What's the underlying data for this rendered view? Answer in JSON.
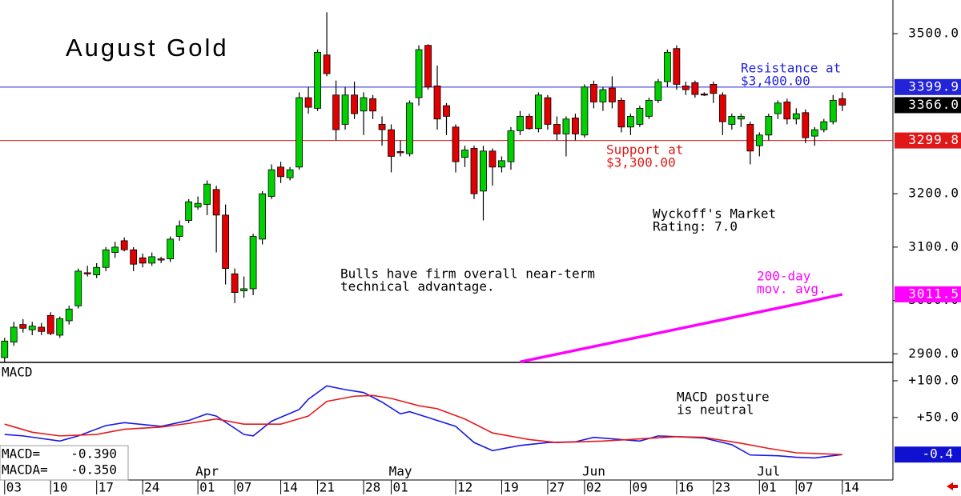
{
  "chart_data": {
    "type": "candlestick",
    "title": "August Gold",
    "xlim": [
      -0.5,
      96.5
    ],
    "xticks": [
      {
        "value": 0,
        "label": "03"
      },
      {
        "value": 5,
        "label": "10"
      },
      {
        "value": 10,
        "label": "17"
      },
      {
        "value": 15,
        "label": "24"
      },
      {
        "value": 21,
        "label": "01"
      },
      {
        "value": 25,
        "label": "07"
      },
      {
        "value": 30,
        "label": "14"
      },
      {
        "value": 34,
        "label": "21"
      },
      {
        "value": 39,
        "label": "28"
      },
      {
        "value": 42,
        "label": "01"
      },
      {
        "value": 49,
        "label": "12"
      },
      {
        "value": 54,
        "label": "19"
      },
      {
        "value": 59,
        "label": "27"
      },
      {
        "value": 63,
        "label": "02"
      },
      {
        "value": 68,
        "label": "09"
      },
      {
        "value": 73,
        "label": "16"
      },
      {
        "value": 77,
        "label": "23"
      },
      {
        "value": 82,
        "label": "01"
      },
      {
        "value": 86,
        "label": "07"
      },
      {
        "value": 91,
        "label": "14"
      }
    ],
    "month_labels": [
      {
        "value": 22,
        "label": "Apr"
      },
      {
        "value": 43,
        "label": "May"
      },
      {
        "value": 64,
        "label": "Jun"
      },
      {
        "value": 83,
        "label": "Jul"
      }
    ],
    "ylim": [
      2884,
      3563
    ],
    "yticks": [
      {
        "value": 2900,
        "label": "2900.0"
      },
      {
        "value": 3000,
        "label": "3000.0"
      },
      {
        "value": 3100,
        "label": "3100.0"
      },
      {
        "value": 3200,
        "label": "3200.0"
      },
      {
        "value": 3500,
        "label": "3500.0"
      }
    ],
    "up_color": "#00d000",
    "down_color": "#e00000",
    "ohlc": [
      [
        2893,
        2930,
        2885,
        2924
      ],
      [
        2922,
        2960,
        2915,
        2950
      ],
      [
        2955,
        2965,
        2940,
        2948
      ],
      [
        2945,
        2960,
        2935,
        2952
      ],
      [
        2950,
        2958,
        2935,
        2942
      ],
      [
        2972,
        2978,
        2935,
        2938
      ],
      [
        2935,
        2970,
        2930,
        2966
      ],
      [
        2962,
        2990,
        2955,
        2984
      ],
      [
        2990,
        3060,
        2985,
        3055
      ],
      [
        3052,
        3065,
        3045,
        3050
      ],
      [
        3048,
        3070,
        3042,
        3062
      ],
      [
        3062,
        3100,
        3055,
        3095
      ],
      [
        3090,
        3110,
        3080,
        3100
      ],
      [
        3112,
        3118,
        3092,
        3095
      ],
      [
        3095,
        3100,
        3055,
        3068
      ],
      [
        3080,
        3088,
        3062,
        3070
      ],
      [
        3070,
        3090,
        3065,
        3082
      ],
      [
        3078,
        3082,
        3070,
        3076
      ],
      [
        3078,
        3120,
        3072,
        3115
      ],
      [
        3120,
        3150,
        3112,
        3140
      ],
      [
        3150,
        3190,
        3145,
        3185
      ],
      [
        3175,
        3195,
        3170,
        3182
      ],
      [
        3180,
        3225,
        3160,
        3218
      ],
      [
        3208,
        3215,
        3090,
        3160
      ],
      [
        3160,
        3180,
        3030,
        3060
      ],
      [
        3050,
        3060,
        2995,
        3015
      ],
      [
        3018,
        3045,
        3005,
        3022
      ],
      [
        3022,
        3125,
        3010,
        3120
      ],
      [
        3115,
        3205,
        3105,
        3200
      ],
      [
        3195,
        3255,
        3190,
        3245
      ],
      [
        3250,
        3260,
        3220,
        3232
      ],
      [
        3230,
        3250,
        3225,
        3245
      ],
      [
        3250,
        3390,
        3245,
        3380
      ],
      [
        3380,
        3400,
        3350,
        3362
      ],
      [
        3360,
        3470,
        3355,
        3465
      ],
      [
        3460,
        3540,
        3420,
        3425
      ],
      [
        3385,
        3412,
        3300,
        3320
      ],
      [
        3330,
        3400,
        3320,
        3385
      ],
      [
        3385,
        3410,
        3340,
        3350
      ],
      [
        3355,
        3390,
        3310,
        3380
      ],
      [
        3378,
        3385,
        3340,
        3355
      ],
      [
        3330,
        3345,
        3290,
        3320
      ],
      [
        3320,
        3330,
        3240,
        3270
      ],
      [
        3279,
        3300,
        3270,
        3278
      ],
      [
        3275,
        3375,
        3270,
        3370
      ],
      [
        3380,
        3478,
        3365,
        3470
      ],
      [
        3478,
        3480,
        3395,
        3400
      ],
      [
        3402,
        3440,
        3320,
        3340
      ],
      [
        3365,
        3370,
        3310,
        3345
      ],
      [
        3325,
        3330,
        3240,
        3260
      ],
      [
        3268,
        3290,
        3250,
        3282
      ],
      [
        3285,
        3290,
        3190,
        3200
      ],
      [
        3205,
        3290,
        3150,
        3280
      ],
      [
        3280,
        3285,
        3215,
        3250
      ],
      [
        3250,
        3270,
        3240,
        3262
      ],
      [
        3260,
        3325,
        3245,
        3318
      ],
      [
        3318,
        3355,
        3310,
        3345
      ],
      [
        3345,
        3350,
        3320,
        3322
      ],
      [
        3322,
        3390,
        3315,
        3385
      ],
      [
        3380,
        3385,
        3320,
        3330
      ],
      [
        3330,
        3345,
        3300,
        3312
      ],
      [
        3312,
        3345,
        3270,
        3340
      ],
      [
        3342,
        3350,
        3300,
        3312
      ],
      [
        3310,
        3405,
        3305,
        3400
      ],
      [
        3405,
        3412,
        3360,
        3372
      ],
      [
        3372,
        3400,
        3355,
        3395
      ],
      [
        3398,
        3420,
        3360,
        3372
      ],
      [
        3375,
        3380,
        3315,
        3325
      ],
      [
        3325,
        3350,
        3310,
        3345
      ],
      [
        3330,
        3365,
        3325,
        3360
      ],
      [
        3345,
        3380,
        3340,
        3375
      ],
      [
        3375,
        3415,
        3370,
        3410
      ],
      [
        3410,
        3470,
        3400,
        3465
      ],
      [
        3472,
        3478,
        3395,
        3405
      ],
      [
        3402,
        3410,
        3385,
        3395
      ],
      [
        3408,
        3412,
        3380,
        3386
      ],
      [
        3387,
        3390,
        3383,
        3386
      ],
      [
        3405,
        3410,
        3370,
        3388
      ],
      [
        3385,
        3390,
        3310,
        3335
      ],
      [
        3330,
        3350,
        3320,
        3345
      ],
      [
        3340,
        3350,
        3325,
        3345
      ],
      [
        3330,
        3335,
        3255,
        3280
      ],
      [
        3290,
        3315,
        3270,
        3310
      ],
      [
        3310,
        3350,
        3300,
        3345
      ],
      [
        3350,
        3375,
        3340,
        3370
      ],
      [
        3372,
        3378,
        3330,
        3340
      ],
      [
        3340,
        3360,
        3330,
        3350
      ],
      [
        3352,
        3358,
        3295,
        3305
      ],
      [
        3308,
        3325,
        3290,
        3320
      ],
      [
        3320,
        3340,
        3315,
        3335
      ],
      [
        3335,
        3385,
        3330,
        3375
      ],
      [
        3378,
        3390,
        3355,
        3366
      ]
    ],
    "moving_average": {
      "color": "#ff00ff",
      "x": [
        56,
        66,
        76,
        86,
        91
      ],
      "values": [
        2885,
        2921,
        2957,
        2993,
        3011.5
      ]
    },
    "levels": [
      {
        "value": 3399.9,
        "color": "#2323d8",
        "line": true
      },
      {
        "value": 3299.8,
        "color": "#e01818",
        "line": true
      },
      {
        "value": 3366.0,
        "label": "3366.0",
        "color": "#000000"
      },
      {
        "value": 3011.5,
        "color": "#ff00ff"
      }
    ],
    "annotations": [
      {
        "lines": [
          "Resistance at",
          "$3,400.00"
        ],
        "color": "#2323d8"
      },
      {
        "lines": [
          "Support at",
          "$3,300.00"
        ],
        "color": "#e01818"
      },
      {
        "lines": [
          "Wyckoff's Market",
          "Rating: 7.0"
        ],
        "color": "#000000"
      },
      {
        "lines": [
          "Bulls have firm overall near-term",
          "technical advantage."
        ],
        "color": "#000000"
      },
      {
        "lines": [
          "200-day",
          "mov. avg."
        ],
        "color": "#ff00ff"
      },
      {
        "lines": [
          "MACD posture",
          "is neutral"
        ],
        "color": "#000000"
      }
    ],
    "macd": {
      "label": "MACD",
      "y2lim": [
        -35,
        125
      ],
      "y2ticks": [
        {
          "value": 50,
          "label": "+50.0"
        },
        {
          "value": 100,
          "label": "+100.0"
        }
      ],
      "series": [
        {
          "color": "#1818e8",
          "x": [
            0,
            2,
            6,
            8,
            11,
            13,
            17,
            20,
            22,
            23,
            26,
            27,
            29,
            32,
            33,
            35,
            37,
            39,
            41,
            43,
            44,
            46,
            49,
            51,
            53,
            56,
            59,
            62,
            64,
            66,
            69,
            71,
            73,
            76,
            79,
            81,
            84,
            86,
            88,
            91
          ],
          "values": [
            27,
            25,
            18,
            25,
            39,
            43,
            38,
            46,
            55,
            52,
            27,
            25,
            45,
            61,
            75,
            93,
            88,
            84,
            71,
            55,
            58,
            50,
            38,
            16,
            5,
            12,
            16,
            17,
            23,
            21,
            18,
            25,
            24,
            22,
            13,
            -1,
            -2,
            -4,
            -5,
            -0.39
          ]
        },
        {
          "color": "#e81818",
          "x": [
            0,
            3,
            6,
            10,
            13,
            17,
            20,
            23,
            26,
            30,
            33,
            35,
            38,
            40,
            42,
            45,
            47,
            50,
            53,
            57,
            60,
            65,
            69,
            73,
            76,
            80,
            83,
            86,
            91
          ],
          "values": [
            41,
            30,
            25,
            27,
            34,
            37,
            42,
            48,
            41,
            41,
            52,
            72,
            79,
            80,
            76,
            66,
            62,
            48,
            29,
            20,
            16,
            18,
            21,
            24,
            23,
            15,
            8,
            2,
            -0.35
          ]
        }
      ],
      "level": {
        "value": -0.4,
        "color": "#1010d0"
      },
      "legend": [
        {
          "label": "MACD=",
          "value": -0.39,
          "value_label": "-0.390"
        },
        {
          "label": "MACDA=",
          "value": -0.35,
          "value_label": "-0.350"
        }
      ]
    }
  }
}
